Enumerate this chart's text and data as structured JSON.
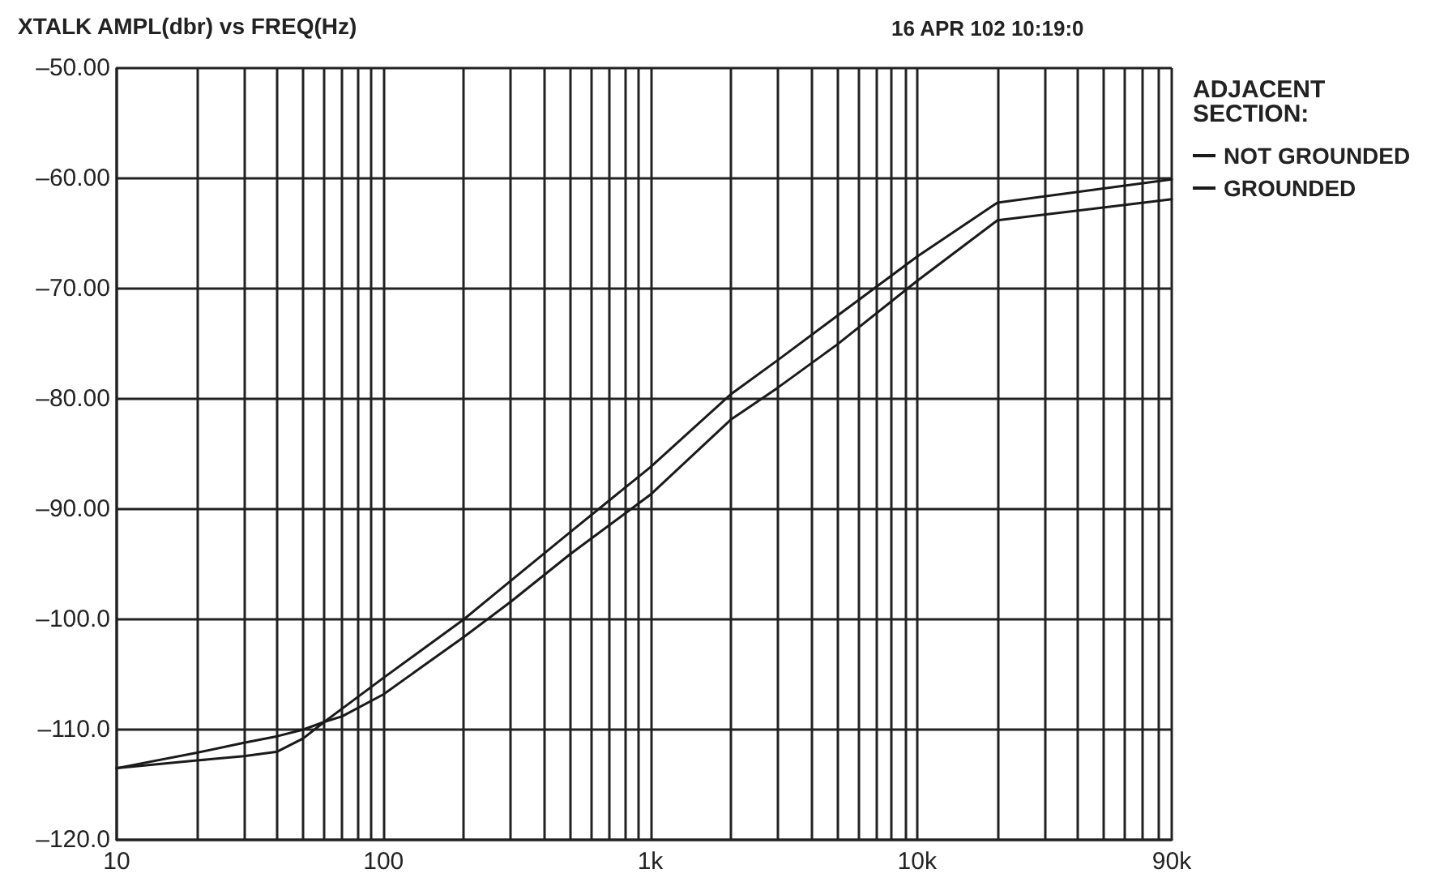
{
  "chart_data": {
    "type": "line",
    "title": "XTALK AMPL(dbr) vs FREQ(Hz)",
    "subtitle": "16 APR 102 10:19:0",
    "legend_title": "ADJACENT SECTION:",
    "legend": "right",
    "log": "x",
    "grid": true,
    "marker": "none",
    "line_style": "solid",
    "xlim": [
      10,
      90000
    ],
    "xticks": [
      10,
      {
        "value": 20,
        "label": null
      },
      {
        "value": 30,
        "label": null
      },
      {
        "value": 40,
        "label": null
      },
      {
        "value": 50,
        "label": null
      },
      {
        "value": 60,
        "label": null
      },
      {
        "value": 70,
        "label": null
      },
      {
        "value": 80,
        "label": null
      },
      {
        "value": 90,
        "label": null
      },
      100,
      {
        "value": 200,
        "label": null
      },
      {
        "value": 300,
        "label": null
      },
      {
        "value": 400,
        "label": null
      },
      {
        "value": 500,
        "label": null
      },
      {
        "value": 600,
        "label": null
      },
      {
        "value": 700,
        "label": null
      },
      {
        "value": 800,
        "label": null
      },
      {
        "value": 900,
        "label": null
      },
      {
        "value": 1000,
        "label": "1k"
      },
      {
        "value": 2000,
        "label": null
      },
      {
        "value": 3000,
        "label": null
      },
      {
        "value": 4000,
        "label": null
      },
      {
        "value": 5000,
        "label": null
      },
      {
        "value": 6000,
        "label": null
      },
      {
        "value": 7000,
        "label": null
      },
      {
        "value": 8000,
        "label": null
      },
      {
        "value": 9000,
        "label": null
      },
      {
        "value": 10000,
        "label": "10k"
      },
      {
        "value": 20000,
        "label": null
      },
      {
        "value": 30000,
        "label": null
      },
      {
        "value": 40000,
        "label": null
      },
      {
        "value": 50000,
        "label": null
      },
      {
        "value": 60000,
        "label": null
      },
      {
        "value": 70000,
        "label": null
      },
      {
        "value": 80000,
        "label": null
      },
      {
        "value": 90000,
        "label": "90k"
      }
    ],
    "ylim": [
      -120,
      -50
    ],
    "yticks": [
      {
        "value": -120,
        "label": "–120.0"
      },
      {
        "value": -110,
        "label": "–110.0"
      },
      {
        "value": -100,
        "label": "–100.0"
      },
      {
        "value": -90,
        "label": "–90.00"
      },
      {
        "value": -80,
        "label": "–80.00"
      },
      {
        "value": -70,
        "label": "–70.00"
      },
      {
        "value": -60,
        "label": "–60.00"
      },
      {
        "value": -50,
        "label": "–50.00"
      }
    ],
    "x": [
      10,
      20,
      30,
      40,
      50,
      60,
      70,
      100,
      200,
      300,
      500,
      1000,
      2000,
      3000,
      5000,
      10000,
      20000,
      90000
    ],
    "series": [
      {
        "name": "NOT GROUNDED",
        "color": "#1a1a1a",
        "values": [
          -113.5,
          -112.1,
          -111.2,
          -110.6,
          -110,
          -109.3,
          -108.1,
          -105.3,
          -100,
          -96.5,
          -92.1,
          -86.2,
          -79.6,
          -76.5,
          -72.5,
          -67.1,
          -62.2,
          -60.1
        ]
      },
      {
        "name": "GROUNDED",
        "color": "#1a1a1a",
        "values": [
          -113.5,
          -112.8,
          -112.4,
          -112,
          -110.8,
          -109.3,
          -108.8,
          -106.8,
          -101.6,
          -98.4,
          -94.1,
          -88.7,
          -81.9,
          -79,
          -75.1,
          -69.3,
          -63.8,
          -61.9
        ]
      }
    ]
  }
}
